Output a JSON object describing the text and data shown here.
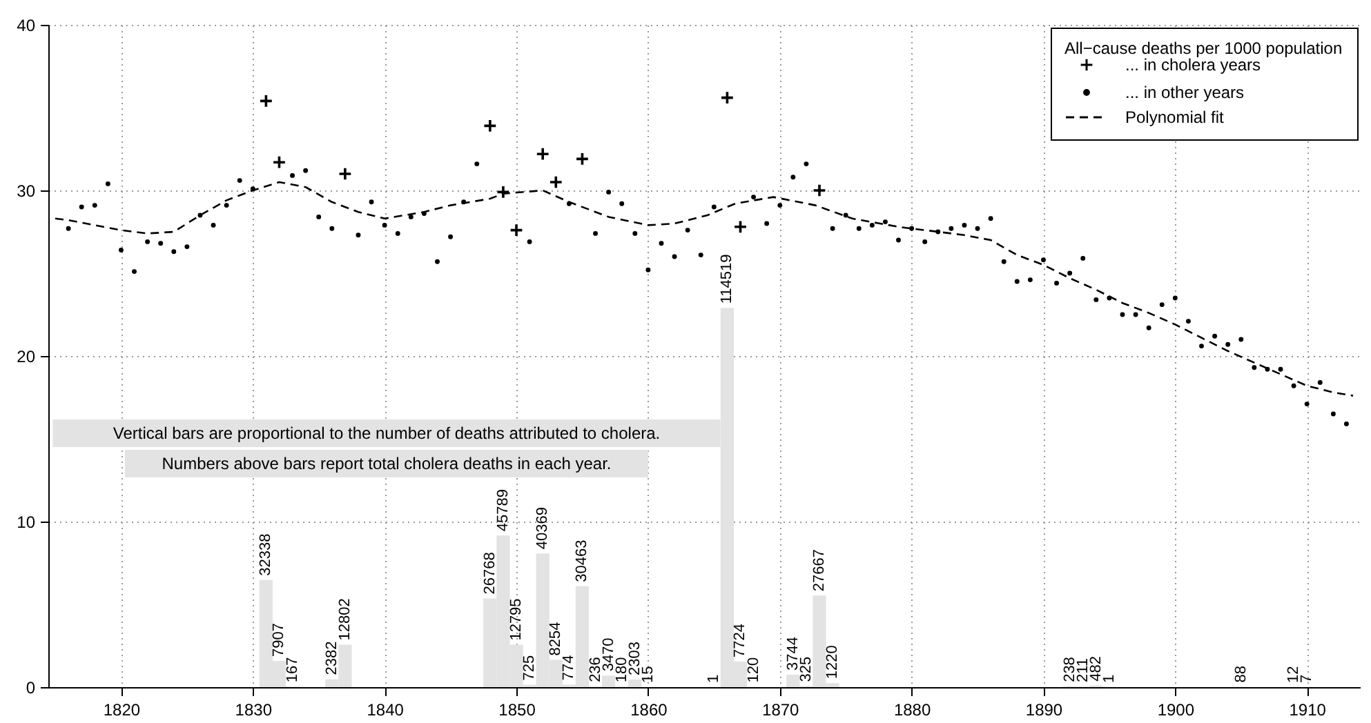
{
  "chart_data": {
    "type": "scatter",
    "xlim": [
      1815,
      1913.5
    ],
    "ylim": [
      0,
      40
    ],
    "y2lim": [
      0,
      200000
    ],
    "xticks": [
      1820,
      1830,
      1840,
      1850,
      1860,
      1870,
      1880,
      1890,
      1900,
      1910
    ],
    "yticks": [
      0,
      10,
      20,
      30,
      40
    ],
    "grid": true,
    "legend": "top right",
    "legend_title": "All−cause deaths per 1000 population",
    "annotations": [
      "Vertical bars are proportional to the number of deaths attributed to cholera.",
      "Numbers above bars report total cholera deaths in each year."
    ],
    "series": [
      {
        "type": "bar",
        "axis": "y2",
        "color": "#e3e3e3",
        "x": [
          1831,
          1832,
          1833,
          1836,
          1837,
          1848,
          1849,
          1850,
          1851,
          1852,
          1853,
          1854,
          1855,
          1856,
          1857,
          1858,
          1859,
          1860,
          1865,
          1866,
          1867,
          1868,
          1871,
          1872,
          1873,
          1874,
          1892,
          1893,
          1894,
          1895,
          1905,
          1909,
          1910
        ],
        "values": [
          32338,
          7907,
          167,
          2382,
          12802,
          26768,
          45789,
          12795,
          725,
          40369,
          8254,
          774,
          30463,
          236,
          3470,
          180,
          2303,
          15,
          1,
          114519,
          7724,
          120,
          3744,
          325,
          27667,
          1220,
          238,
          211,
          482,
          1,
          88,
          12,
          7
        ],
        "value_labels": [
          "32338",
          "7907",
          "167",
          "2382",
          "12802",
          "26768",
          "45789",
          "12795",
          "725",
          "40369",
          "8254",
          "774",
          "30463",
          "236",
          "3470",
          "180",
          "2303",
          "15",
          "1",
          "114519",
          "7724",
          "120",
          "3744",
          "325",
          "27667",
          "1220",
          "238",
          "211",
          "482",
          "1",
          "88",
          "12",
          "7"
        ]
      },
      {
        "name": "... in cholera years",
        "color": "#000000",
        "marker": "cross",
        "x": [
          1831,
          1832,
          1837,
          1848,
          1849,
          1850,
          1852,
          1853,
          1855,
          1866,
          1867,
          1873
        ],
        "values": [
          35.4,
          31.7,
          31.0,
          33.9,
          29.9,
          27.6,
          32.2,
          30.5,
          31.9,
          35.6,
          27.8,
          30.0
        ]
      },
      {
        "name": "... in other years",
        "color": "#000000",
        "marker": "circle",
        "x": [
          1816,
          1817,
          1818,
          1819,
          1820,
          1821,
          1822,
          1823,
          1824,
          1825,
          1826,
          1827,
          1828,
          1829,
          1830,
          1833,
          1834,
          1835,
          1836,
          1838,
          1839,
          1840,
          1841,
          1842,
          1843,
          1844,
          1845,
          1846,
          1847,
          1851,
          1854,
          1856,
          1857,
          1858,
          1859,
          1860,
          1861,
          1862,
          1863,
          1864,
          1865,
          1868,
          1869,
          1870,
          1871,
          1872,
          1874,
          1875,
          1876,
          1877,
          1878,
          1879,
          1880,
          1881,
          1882,
          1883,
          1884,
          1885,
          1886,
          1887,
          1888,
          1889,
          1890,
          1891,
          1892,
          1893,
          1894,
          1895,
          1896,
          1897,
          1898,
          1899,
          1900,
          1901,
          1902,
          1903,
          1904,
          1905,
          1906,
          1907,
          1908,
          1909,
          1910,
          1911,
          1912,
          1913
        ],
        "values": [
          27.7,
          29.0,
          29.1,
          30.4,
          26.4,
          25.1,
          26.9,
          26.8,
          26.3,
          26.6,
          28.5,
          27.9,
          29.1,
          30.6,
          30.1,
          30.9,
          31.2,
          28.4,
          27.7,
          27.3,
          29.3,
          27.9,
          27.4,
          28.4,
          28.6,
          25.7,
          27.2,
          29.3,
          31.6,
          26.9,
          29.2,
          27.4,
          29.9,
          29.2,
          27.4,
          25.2,
          26.8,
          26.0,
          27.6,
          26.1,
          29.0,
          29.6,
          28.0,
          29.1,
          30.8,
          31.6,
          27.7,
          28.5,
          27.7,
          27.9,
          28.1,
          27.0,
          27.7,
          26.9,
          27.5,
          27.7,
          27.9,
          27.7,
          28.3,
          25.7,
          24.5,
          24.6,
          25.8,
          24.4,
          25.0,
          25.9,
          23.4,
          23.5,
          22.5,
          22.5,
          21.7,
          23.1,
          23.5,
          22.1,
          20.6,
          21.2,
          20.7,
          21.0,
          19.3,
          19.2,
          19.2,
          18.2,
          17.1,
          18.4,
          16.5,
          15.9
        ]
      },
      {
        "type": "line",
        "name": "Polynomial fit",
        "color": "#000000",
        "line_style": "dashed",
        "x": [
          1815,
          1816,
          1820,
          1822,
          1824,
          1826,
          1828,
          1830,
          1832,
          1834,
          1836,
          1838,
          1840,
          1843,
          1845,
          1848,
          1849,
          1852,
          1854,
          1857,
          1860,
          1862,
          1864.5,
          1866.6,
          1869.5,
          1872.7,
          1875.5,
          1879,
          1880,
          1882,
          1884,
          1886,
          1888,
          1890,
          1892,
          1894,
          1896,
          1898,
          1900,
          1902,
          1904,
          1906,
          1908,
          1910,
          1912,
          1913.5
        ],
        "values": [
          28.3,
          28.2,
          27.6,
          27.4,
          27.5,
          28.5,
          29.4,
          30.0,
          30.5,
          30.2,
          29.3,
          28.7,
          28.3,
          28.7,
          29.1,
          29.5,
          29.8,
          30.0,
          29.3,
          28.4,
          27.9,
          28.0,
          28.5,
          29.2,
          29.6,
          29.1,
          28.3,
          27.8,
          27.7,
          27.5,
          27.3,
          27.0,
          26.1,
          25.5,
          24.7,
          24.0,
          23.2,
          22.6,
          21.9,
          21.1,
          20.3,
          19.6,
          18.9,
          18.2,
          17.8,
          17.6
        ]
      }
    ]
  }
}
